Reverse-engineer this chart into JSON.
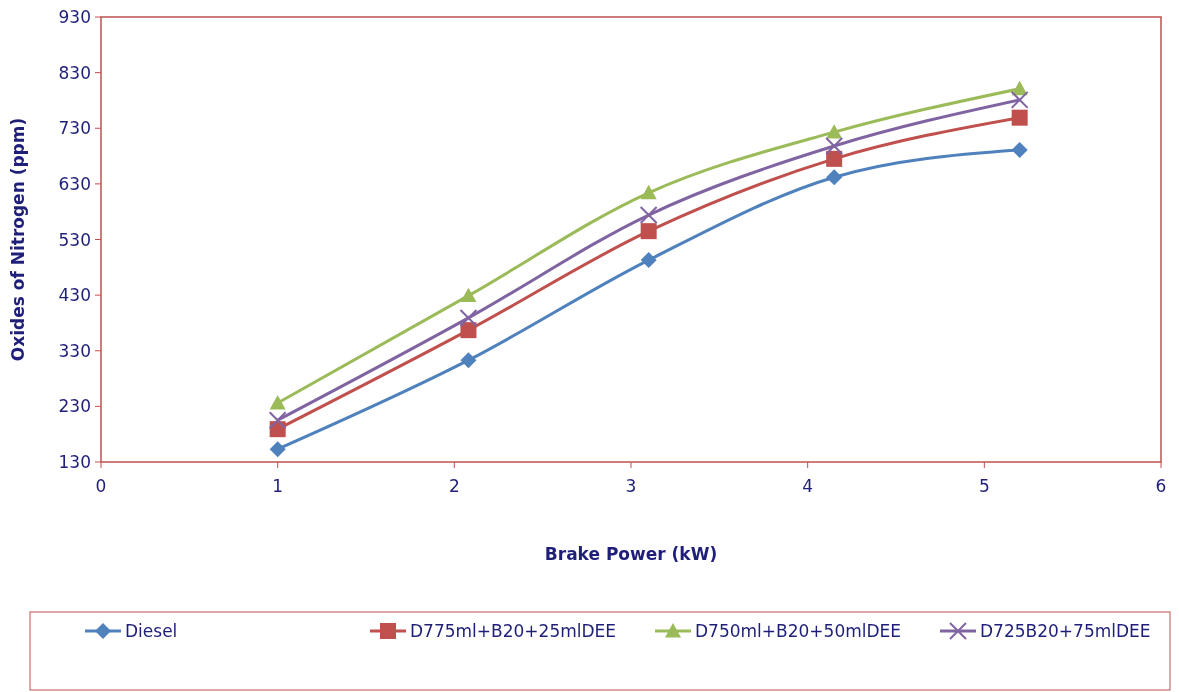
{
  "chart_data": {
    "type": "line",
    "xlabel": "Brake Power (kW)",
    "ylabel": "Oxides of Nitrogen (ppm)",
    "xlim": [
      0,
      6
    ],
    "xticks": [
      0,
      1,
      2,
      3,
      4,
      5,
      6
    ],
    "ylim": [
      130,
      930
    ],
    "yticks": [
      130,
      230,
      330,
      430,
      530,
      630,
      730,
      830,
      930
    ],
    "grid": false,
    "legend": "bottom",
    "line_style": "solid",
    "series": [
      {
        "name": "Diesel",
        "color": "#4f81bd",
        "marker": "diamond",
        "x": [
          1,
          2.08,
          3.1,
          4.15,
          5.2
        ],
        "values": [
          153,
          313,
          493,
          642,
          691
        ]
      },
      {
        "name": "D775ml+B20+25mlDEE",
        "color": "#c0504d",
        "marker": "square",
        "x": [
          1,
          2.08,
          3.1,
          4.15,
          5.2
        ],
        "values": [
          189,
          367,
          545,
          675,
          749
        ]
      },
      {
        "name": "D750ml+B20+50mlDEE",
        "color": "#9bbb59",
        "marker": "triangle",
        "x": [
          1,
          2.08,
          3.1,
          4.15,
          5.2
        ],
        "values": [
          236,
          429,
          614,
          723,
          801
        ]
      },
      {
        "name": "D725B20+75mlDEE",
        "color": "#8064a2",
        "marker": "cross",
        "x": [
          1,
          2.08,
          3.1,
          4.15,
          5.2
        ],
        "values": [
          205,
          389,
          574,
          698,
          781
        ]
      }
    ]
  }
}
